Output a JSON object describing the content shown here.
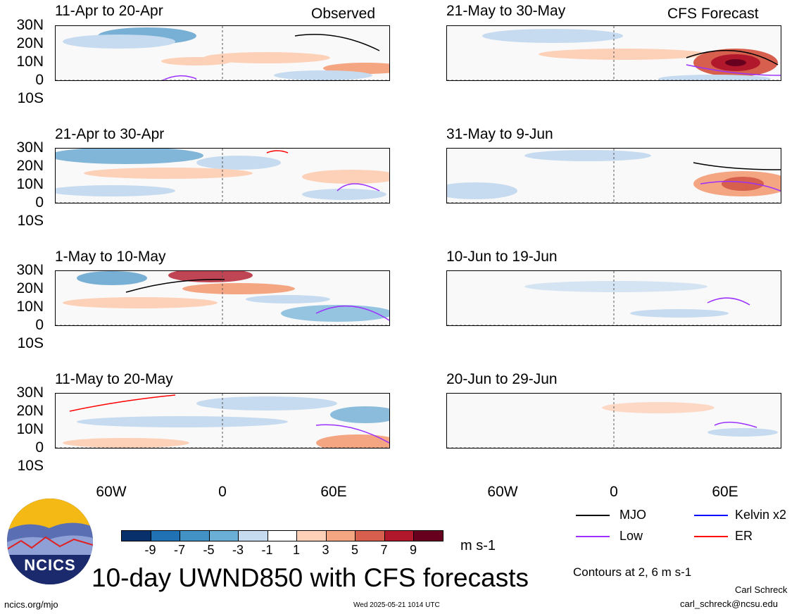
{
  "panels": {
    "p1": {
      "title": "11-Apr to 20-Apr",
      "tag": "Observed"
    },
    "p2": {
      "title": "21-Apr to 30-Apr"
    },
    "p3": {
      "title": "1-May to 10-May"
    },
    "p4": {
      "title": "11-May to 20-May"
    },
    "p5": {
      "title": "21-May to 30-May",
      "tag": "CFS Forecast"
    },
    "p6": {
      "title": "31-May to 9-Jun"
    },
    "p7": {
      "title": "10-Jun to 19-Jun"
    },
    "p8": {
      "title": "20-Jun to 29-Jun"
    }
  },
  "lat_labels": [
    "30N",
    "20N",
    "10N",
    "0",
    "10S"
  ],
  "lon_labels": [
    "60W",
    "0",
    "60E"
  ],
  "colorbar": {
    "ticks": [
      "-9",
      "-7",
      "-5",
      "-3",
      "-1",
      "1",
      "3",
      "5",
      "7",
      "9"
    ],
    "colors": [
      "#08306b",
      "#2171b5",
      "#4292c6",
      "#6baed6",
      "#c6dbef",
      "#ffffff",
      "#fdd0b8",
      "#f4a582",
      "#d6604d",
      "#b2182b",
      "#67001f"
    ],
    "units": "m s-1"
  },
  "legend": {
    "mjo": {
      "label": "MJO",
      "color": "#000000"
    },
    "kelvin": {
      "label": "Kelvin x2",
      "color": "#0000ff"
    },
    "low": {
      "label": "Low",
      "color": "#9b30ff"
    },
    "er": {
      "label": "ER",
      "color": "#ff0000"
    },
    "contours_note": "Contours at 2, 6 m s-1"
  },
  "main_title": "10-day UWND850 with CFS forecasts",
  "logo": {
    "text": "NCICS"
  },
  "footer": {
    "url": "ncics.org/mjo",
    "timestamp": "Wed 2025-05-21 1014 UTC",
    "author": "Carl Schreck",
    "email": "carl_schreck@ncsu.edu"
  }
}
